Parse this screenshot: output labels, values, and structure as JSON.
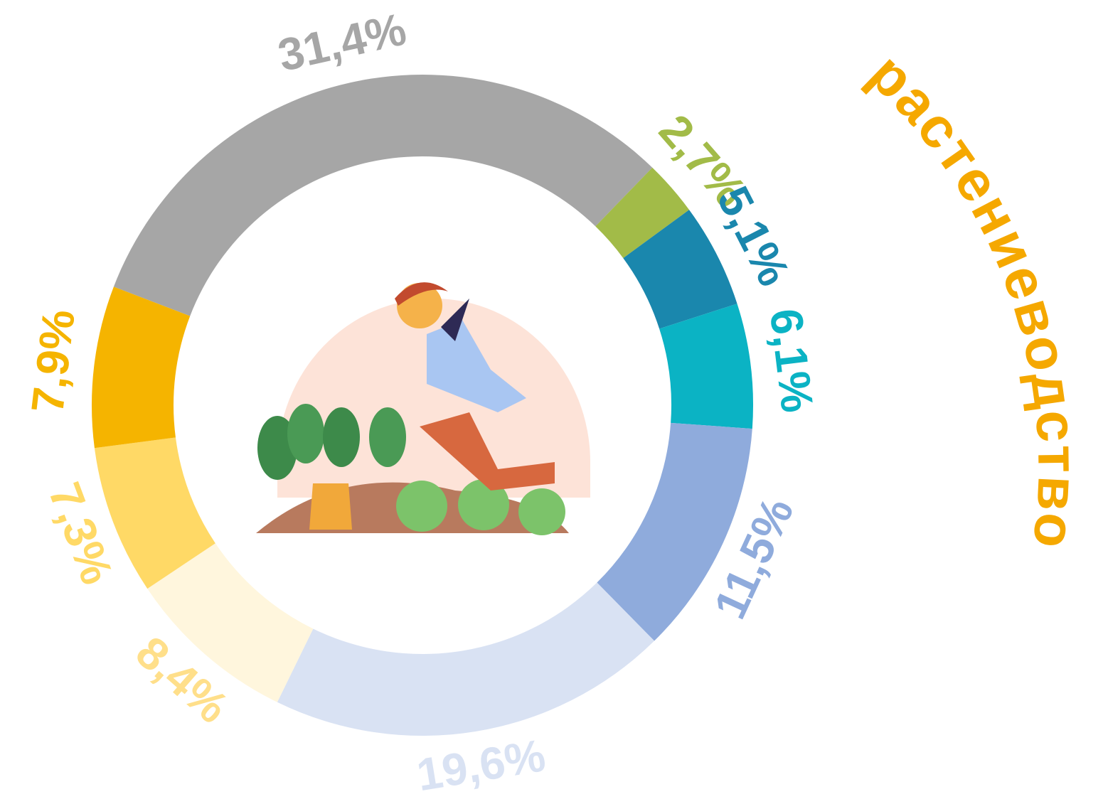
{
  "chart_data": {
    "type": "donut",
    "title": "растениеводство",
    "values": [
      31.4,
      2.7,
      5.1,
      6.1,
      11.5,
      19.6,
      8.4,
      7.3,
      7.9
    ],
    "value_labels": [
      "31,4%",
      "2,7%",
      "5,1%",
      "6,1%",
      "11,5%",
      "19,6%",
      "8,4%",
      "7,3%",
      "7,9%"
    ],
    "colors": [
      "#a6a6a6",
      "#a2bb48",
      "#1a87ad",
      "#0bb3c4",
      "#8fabdc",
      "#d9e2f3",
      "#fff6dd",
      "#ffd966",
      "#f5b400"
    ],
    "title_color": "#f5a800"
  }
}
